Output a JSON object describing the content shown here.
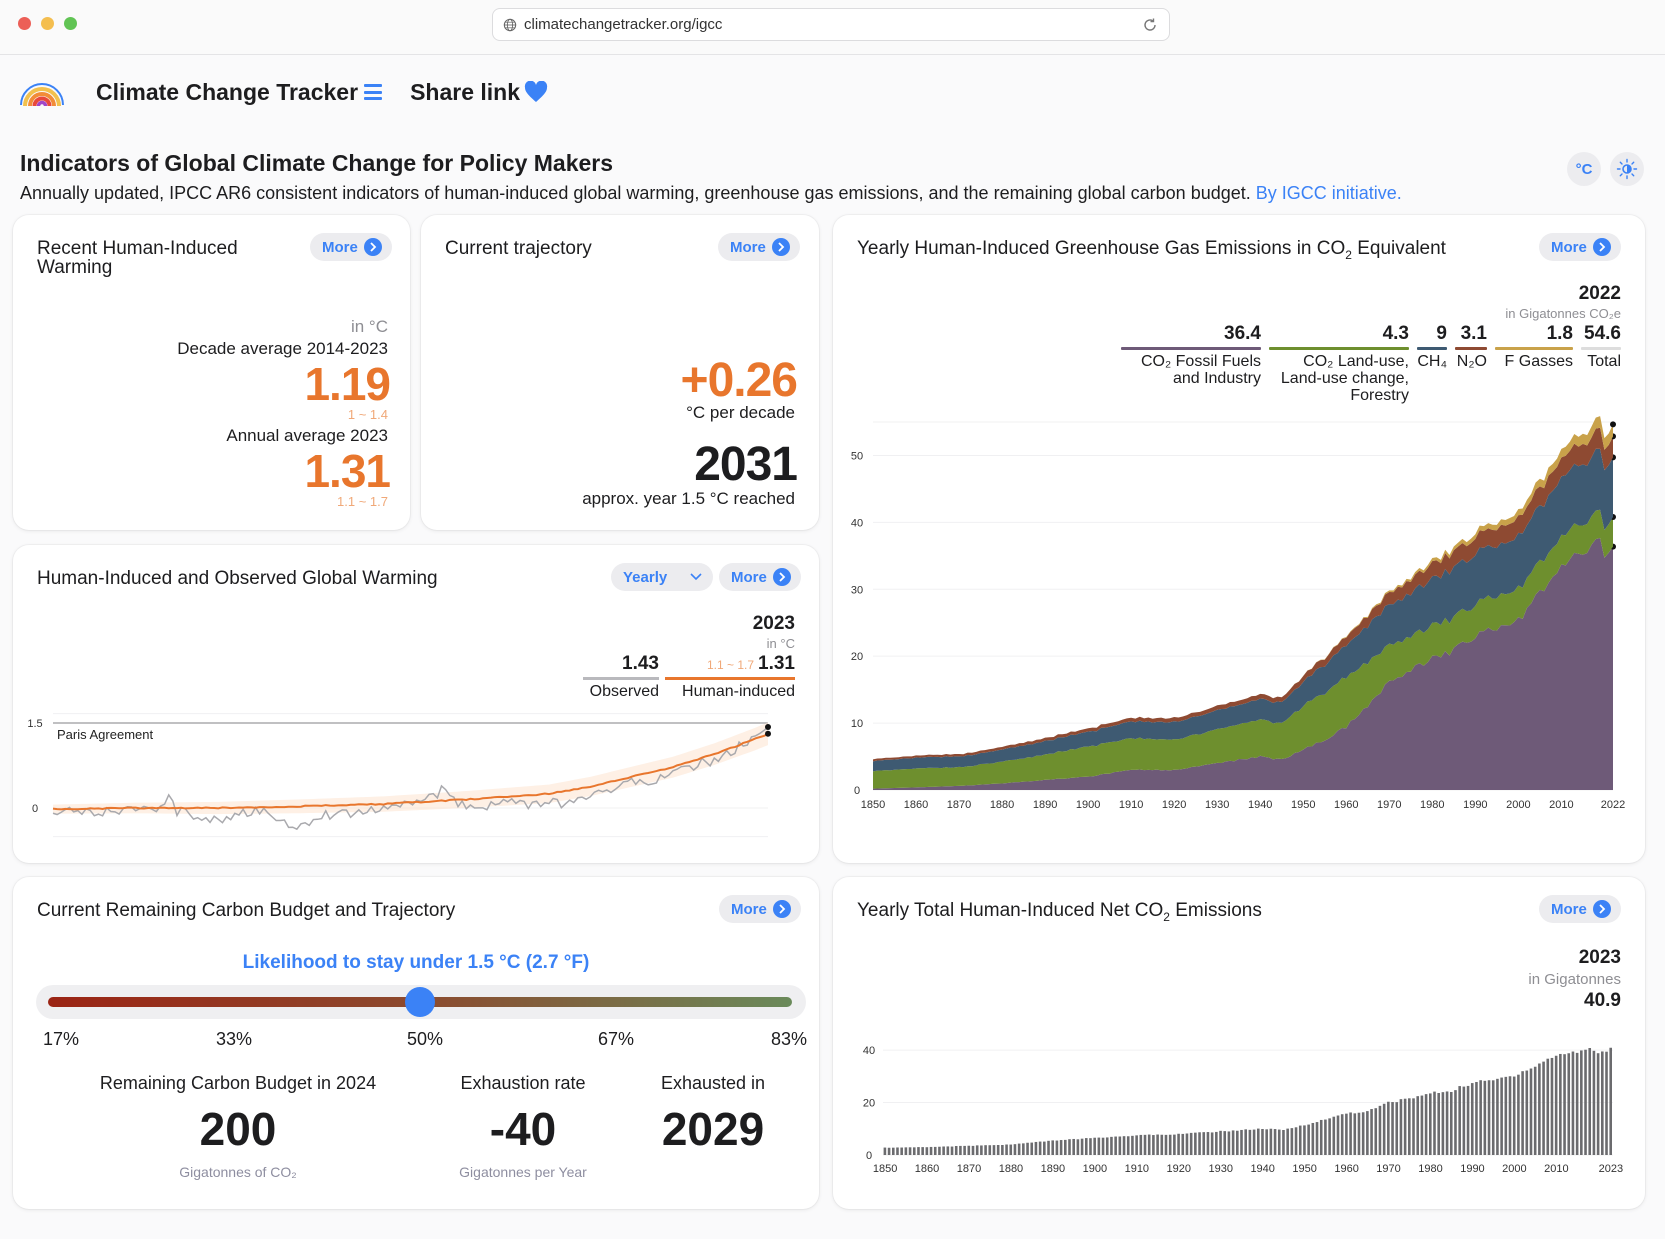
{
  "browser": {
    "url": "climatechangetracker.org/igcc"
  },
  "nav": {
    "brand": "Climate Change Tracker",
    "share_label": "Share link"
  },
  "page": {
    "title": "Indicators of Global Climate Change for Policy Makers",
    "subtitle": "Annually updated, IPCC AR6 consistent indicators of human-induced global warming, greenhouse gas emissions, and the remaining global carbon budget.",
    "initiative_link": "By IGCC initiative.",
    "unit_toggle_label": "°C"
  },
  "more_label": "More",
  "recent_warming": {
    "title": "Recent Human-Induced Warming",
    "unit": "in °C",
    "decade_label": "Decade average 2014-2023",
    "decade_value": "1.19",
    "decade_range": "1 ~ 1.4",
    "annual_label": "Annual average 2023",
    "annual_value": "1.31",
    "annual_range": "1.1 ~ 1.7"
  },
  "trajectory": {
    "title": "Current trajectory",
    "rate_value": "+0.26",
    "rate_unit": "°C per decade",
    "year_value": "2031",
    "year_label": "approx. year 1.5 °C reached"
  },
  "warming_chart": {
    "title": "Human-Induced and Observed Global Warming",
    "period_select": "Yearly",
    "year": "2023",
    "unit": "in °C",
    "observed_value": "1.43",
    "observed_label": "Observed",
    "human_range": "1.1 ~ 1.7",
    "human_value": "1.31",
    "human_label": "Human-induced",
    "paris_label": "Paris Agreement"
  },
  "ghg_chart": {
    "title_pre": "Yearly Human-Induced Greenhouse Gas Emissions in CO",
    "title_sub": "2",
    "title_post": " Equivalent",
    "year": "2022",
    "unit": "in Gigatonnes CO₂e",
    "legend": [
      {
        "value": "36.4",
        "label": "CO₂ Fossil Fuels and Industry",
        "color": "#6e5a78"
      },
      {
        "value": "4.3",
        "label": "CO₂ Land-use, Land-use change, Forestry",
        "color": "#6e8f2e"
      },
      {
        "value": "9",
        "label": "CH₄",
        "color": "#3e5a72"
      },
      {
        "value": "3.1",
        "label": "N₂O",
        "color": "#8e4a32"
      },
      {
        "value": "1.8",
        "label": "F Gasses",
        "color": "#c9a24a"
      },
      {
        "value": "54.6",
        "label": "Total",
        "color": "#dddddd"
      }
    ]
  },
  "budget": {
    "title": "Current Remaining Carbon Budget and Trajectory",
    "likelihood_label": "Likelihood to stay under 1.5 °C (2.7 °F)",
    "likelihood_selected": 0.5,
    "ticks": [
      "17%",
      "33%",
      "50%",
      "67%",
      "83%"
    ],
    "remaining_label": "Remaining Carbon Budget in 2024",
    "remaining_value": "200",
    "remaining_unit": "Gigatonnes of CO₂",
    "rate_label": "Exhaustion rate",
    "rate_value": "-40",
    "rate_unit": "Gigatonnes per Year",
    "exhausted_label": "Exhausted in",
    "exhausted_value": "2029"
  },
  "net_co2": {
    "title_pre": "Yearly Total Human-Induced Net CO",
    "title_sub": "2",
    "title_post": " Emissions",
    "year": "2023",
    "unit": "in Gigatonnes",
    "value": "40.9"
  },
  "chart_data": [
    {
      "id": "warming",
      "type": "line",
      "title": "Human-Induced and Observed Global Warming",
      "xlabel": "",
      "ylabel": "°C",
      "x_range": [
        1850,
        2023
      ],
      "ylim": [
        -0.4,
        1.7
      ],
      "yticks": [
        0,
        1.5
      ],
      "reference_line": {
        "y": 1.5,
        "label": "Paris Agreement"
      },
      "series": [
        {
          "name": "Observed",
          "color": "#a9a9ad",
          "x": [
            1850,
            1855,
            1860,
            1865,
            1870,
            1875,
            1878,
            1880,
            1885,
            1890,
            1895,
            1900,
            1905,
            1910,
            1915,
            1920,
            1925,
            1930,
            1935,
            1940,
            1944,
            1950,
            1955,
            1960,
            1965,
            1970,
            1975,
            1980,
            1985,
            1990,
            1995,
            2000,
            2005,
            2010,
            2015,
            2016,
            2020,
            2023
          ],
          "y": [
            -0.05,
            0.0,
            -0.08,
            -0.05,
            0.02,
            -0.1,
            0.15,
            -0.05,
            -0.15,
            -0.2,
            -0.1,
            -0.05,
            -0.25,
            -0.3,
            -0.1,
            -0.12,
            -0.05,
            0.02,
            0.05,
            0.15,
            0.3,
            0.0,
            0.05,
            0.12,
            0.05,
            0.1,
            0.05,
            0.25,
            0.35,
            0.45,
            0.5,
            0.6,
            0.75,
            0.85,
            1.0,
            1.1,
            1.2,
            1.43
          ]
        },
        {
          "name": "Human-induced",
          "color": "#e8762d",
          "x": [
            1850,
            1870,
            1890,
            1910,
            1930,
            1950,
            1960,
            1970,
            1980,
            1990,
            2000,
            2010,
            2020,
            2023
          ],
          "y": [
            -0.02,
            0.0,
            0.0,
            0.03,
            0.07,
            0.15,
            0.2,
            0.25,
            0.38,
            0.55,
            0.72,
            0.95,
            1.22,
            1.31
          ]
        }
      ]
    },
    {
      "id": "ghg",
      "type": "area",
      "stacked": true,
      "title": "Yearly Human-Induced Greenhouse Gas Emissions in CO₂ Equivalent",
      "ylabel": "Gigatonnes CO₂e",
      "x": [
        1850,
        1860,
        1870,
        1880,
        1890,
        1900,
        1910,
        1920,
        1930,
        1940,
        1945,
        1950,
        1955,
        1960,
        1965,
        1970,
        1975,
        1980,
        1985,
        1990,
        1995,
        2000,
        2005,
        2010,
        2015,
        2019,
        2020,
        2022
      ],
      "xticks": [
        "1850",
        "1860",
        "1870",
        "1880",
        "1890",
        "1900",
        "1910",
        "1920",
        "1930",
        "1940",
        "1950",
        "1960",
        "1970",
        "1980",
        "1990",
        "2000",
        "2010",
        "2022"
      ],
      "ylim": [
        0,
        55
      ],
      "yticks": [
        0,
        10,
        20,
        30,
        40,
        50
      ],
      "series": [
        {
          "name": "CO₂ Fossil Fuels and Industry",
          "color": "#6e5a78",
          "values": [
            0.2,
            0.4,
            0.6,
            1.0,
            1.5,
            2.0,
            3.0,
            3.0,
            4.0,
            5.0,
            4.5,
            6.0,
            7.5,
            9.5,
            12.5,
            16.5,
            18.0,
            19.5,
            21.0,
            23.0,
            24.0,
            25.5,
            29.5,
            33.5,
            35.5,
            36.8,
            34.5,
            36.4
          ]
        },
        {
          "name": "CO₂ LULUCF",
          "color": "#6e8f2e",
          "values": [
            2.6,
            2.8,
            2.8,
            3.2,
            3.8,
            4.5,
            4.7,
            4.6,
            5.0,
            5.5,
            5.5,
            6.5,
            7.0,
            7.5,
            6.5,
            5.5,
            5.0,
            5.0,
            4.8,
            4.8,
            4.7,
            4.7,
            4.5,
            4.4,
            4.3,
            4.3,
            4.2,
            4.3
          ]
        },
        {
          "name": "CH₄",
          "color": "#3e5a72",
          "values": [
            1.5,
            1.6,
            1.6,
            1.8,
            2.0,
            2.2,
            2.5,
            2.6,
            2.8,
            3.0,
            3.2,
            3.6,
            4.2,
            4.8,
            5.5,
            6.0,
            6.5,
            7.0,
            7.3,
            7.5,
            7.7,
            7.8,
            8.3,
            8.7,
            8.9,
            9.0,
            9.0,
            9.0
          ]
        },
        {
          "name": "N₂O",
          "color": "#8e4a32",
          "values": [
            0.3,
            0.3,
            0.35,
            0.4,
            0.45,
            0.5,
            0.55,
            0.6,
            0.65,
            0.7,
            0.7,
            0.9,
            1.1,
            1.3,
            1.5,
            1.8,
            2.0,
            2.2,
            2.4,
            2.5,
            2.6,
            2.7,
            2.8,
            2.9,
            3.0,
            3.1,
            3.1,
            3.1
          ]
        },
        {
          "name": "F Gasses",
          "color": "#c9a24a",
          "values": [
            0,
            0,
            0,
            0,
            0,
            0,
            0,
            0,
            0,
            0,
            0,
            0.02,
            0.05,
            0.1,
            0.15,
            0.25,
            0.35,
            0.45,
            0.55,
            0.7,
            0.8,
            0.9,
            1.1,
            1.3,
            1.5,
            1.7,
            1.7,
            1.8
          ]
        }
      ]
    },
    {
      "id": "netco2",
      "type": "bar",
      "title": "Yearly Total Human-Induced Net CO₂ Emissions",
      "ylabel": "Gigatonnes",
      "x_range": [
        1850,
        2023
      ],
      "xticks": [
        "1850",
        "1860",
        "1870",
        "1880",
        "1890",
        "1900",
        "1910",
        "1920",
        "1930",
        "1940",
        "1950",
        "1960",
        "1970",
        "1980",
        "1990",
        "2000",
        "2010",
        "2023"
      ],
      "ylim": [
        0,
        45
      ],
      "yticks": [
        0,
        20,
        40
      ],
      "color": "#6b6b6e",
      "anchors_x": [
        1850,
        1860,
        1870,
        1880,
        1890,
        1900,
        1910,
        1920,
        1930,
        1940,
        1945,
        1950,
        1955,
        1960,
        1965,
        1970,
        1975,
        1980,
        1985,
        1990,
        1995,
        2000,
        2005,
        2010,
        2015,
        2019,
        2020,
        2023
      ],
      "anchors_y": [
        2.8,
        3.0,
        3.5,
        4.0,
        5.5,
        6.5,
        7.5,
        8.0,
        9.0,
        10.0,
        9.5,
        11.5,
        13.5,
        16.0,
        16.5,
        20.0,
        21.5,
        23.5,
        24.5,
        27.5,
        28.5,
        30.5,
        34.0,
        38.0,
        39.5,
        40.5,
        38.5,
        40.9
      ]
    }
  ]
}
